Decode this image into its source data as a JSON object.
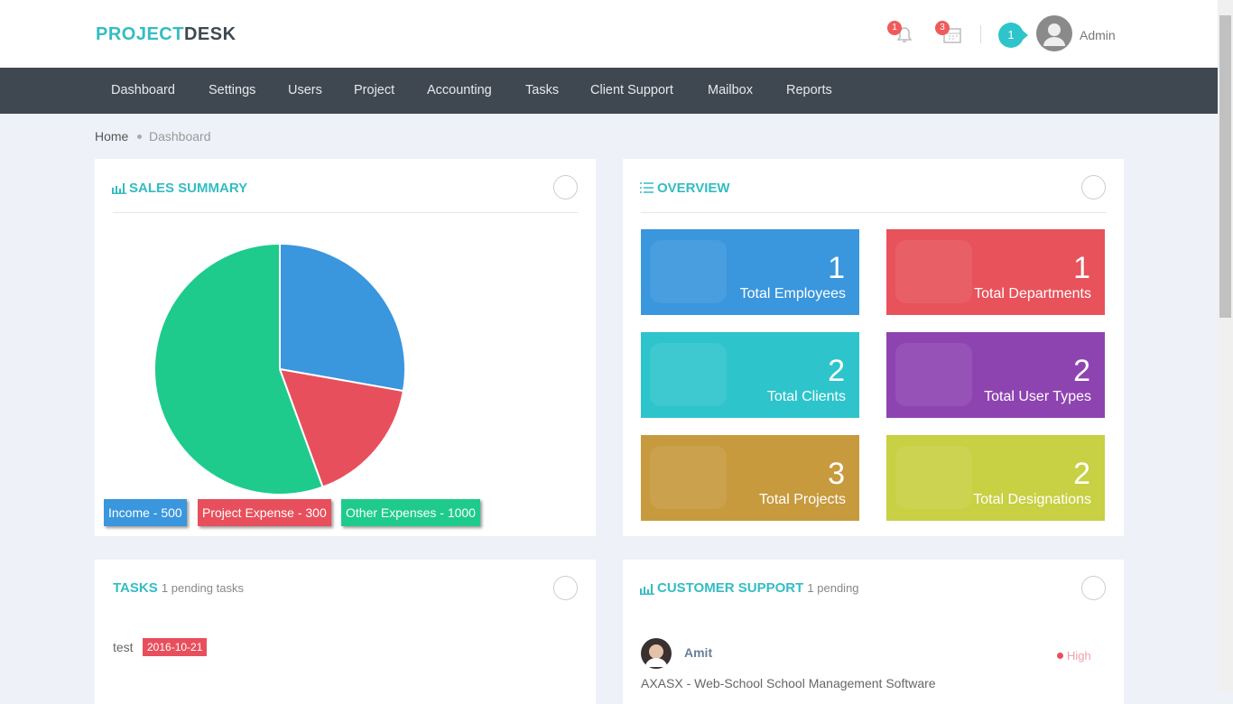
{
  "header": {
    "logo_first": "PROJECT",
    "logo_second": "DESK",
    "notification_count": 1,
    "calendar_count": 3,
    "message_count": 1,
    "user": "Admin"
  },
  "nav": [
    "Dashboard",
    "Settings",
    "Users",
    "Project",
    "Accounting",
    "Tasks",
    "Client Support",
    "Mailbox",
    "Reports"
  ],
  "breadcrumb": [
    "Home",
    "Dashboard"
  ],
  "sales_summary": {
    "title": "SALES SUMMARY"
  },
  "chart_data": {
    "type": "pie",
    "categories": [
      "Income - 500",
      "Project Expense - 300",
      "Other Expenses - 1000"
    ],
    "values": [
      500,
      300,
      1000
    ],
    "colors": [
      "#3a96dd",
      "#e84f5c",
      "#1ecb8c"
    ]
  },
  "overview": {
    "title": "OVERVIEW",
    "tiles": [
      {
        "value": 1,
        "label": "Total Employees",
        "color": "#3a96dd"
      },
      {
        "value": 1,
        "label": "Total Departments",
        "color": "#e8525a"
      },
      {
        "value": 2,
        "label": "Total Clients",
        "color": "#2ec4cc"
      },
      {
        "value": 2,
        "label": "Total User Types",
        "color": "#8e44b0"
      },
      {
        "value": 3,
        "label": "Total Projects",
        "color": "#c79a3e"
      },
      {
        "value": 2,
        "label": "Total Designations",
        "color": "#c8d043"
      }
    ]
  },
  "tasks": {
    "title": "TASKS",
    "subtitle": "1 pending tasks",
    "items": [
      {
        "name": "test",
        "date": "2016-10-21"
      }
    ]
  },
  "customer_support": {
    "title": "CUSTOMER SUPPORT",
    "subtitle": "1 pending",
    "tickets": [
      {
        "name": "Amit",
        "priority": "High",
        "subject": "AXASX - Web-School School Management Software"
      }
    ]
  }
}
